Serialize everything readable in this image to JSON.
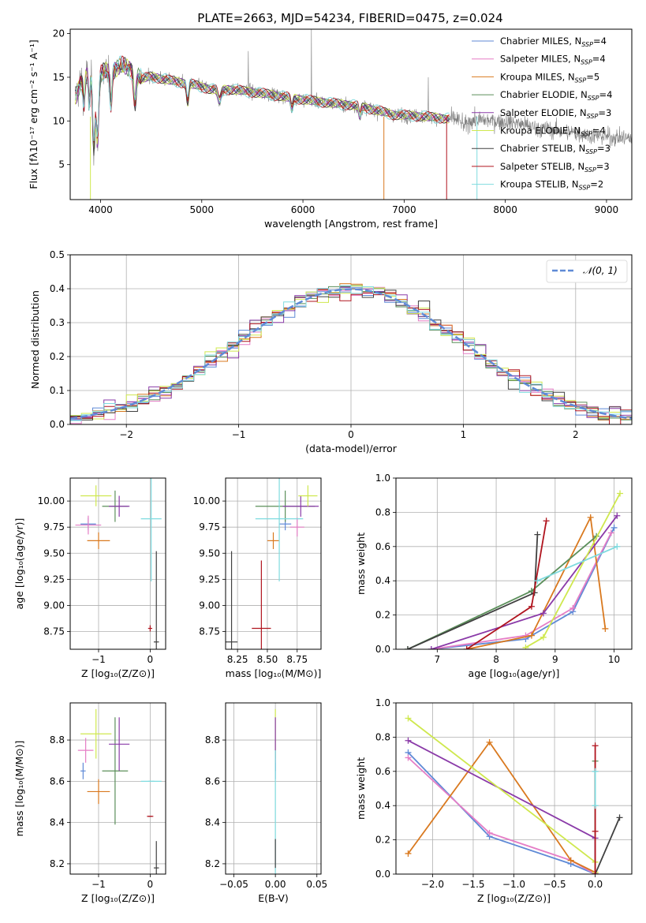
{
  "figure": {
    "title": "PLATE=2663, MJD=54234, FIBERID=0475, z=0.024"
  },
  "colors": {
    "Chabrier MILES": "#5f8ad6",
    "Salpeter MILES": "#e57ec6",
    "Kroupa MILES": "#d9791f",
    "Chabrier ELODIE": "#5b8f5a",
    "Salpeter ELODIE": "#8a3aa8",
    "Kroupa ELODIE": "#cfe84e",
    "Chabrier STELIB": "#404040",
    "Salpeter STELIB": "#b0141e",
    "Kroupa STELIB": "#7fdbdf",
    "data": "#7f7f7f",
    "normal": "#5f8ad6"
  },
  "chart_data": [
    {
      "id": "spectrum",
      "type": "line",
      "title": "PLATE=2663, MJD=54234, FIBERID=0475, z=0.024",
      "xlabel": "wavelength [Angstrom, rest frame]",
      "ylabel": "Flux [fλ10⁻¹⁷ erg cm⁻² s⁻¹ A⁻¹]",
      "xlim": [
        3700,
        9250
      ],
      "ylim": [
        1,
        20.5
      ],
      "xticks": [
        4000,
        5000,
        6000,
        7000,
        8000,
        9000
      ],
      "yticks": [
        5,
        10,
        15,
        20
      ],
      "grid": false,
      "legend_position": "upper right",
      "legend": [
        {
          "label": "Chabrier MILES, N",
          "sub": "SSP",
          "suffix": "=4"
        },
        {
          "label": "Salpeter MILES, N",
          "sub": "SSP",
          "suffix": "=4"
        },
        {
          "label": "Kroupa MILES, N",
          "sub": "SSP",
          "suffix": "=5"
        },
        {
          "label": "Chabrier ELODIE, N",
          "sub": "SSP",
          "suffix": "=4"
        },
        {
          "label": "Salpeter ELODIE, N",
          "sub": "SSP",
          "suffix": "=3"
        },
        {
          "label": "Kroupa ELODIE, N",
          "sub": "SSP",
          "suffix": "=4"
        },
        {
          "label": "Chabrier STELIB, N",
          "sub": "SSP",
          "suffix": "=3"
        },
        {
          "label": "Salpeter STELIB, N",
          "sub": "SSP",
          "suffix": "=3"
        },
        {
          "label": "Kroupa STELIB, N",
          "sub": "SSP",
          "suffix": "=2"
        }
      ],
      "continuum": {
        "x": [
          3750,
          3800,
          3900,
          4000,
          4100,
          4200,
          4300,
          4400,
          4500,
          4700,
          4900,
          5100,
          5300,
          5500,
          5700,
          5900,
          6100,
          6300,
          6500,
          6700,
          6900,
          7100,
          7300,
          7500,
          7700,
          7900,
          8100,
          8300,
          8500,
          8700,
          8900,
          9100,
          9250
        ],
        "y": [
          12.6,
          14.4,
          15.6,
          15.4,
          15.8,
          16.3,
          16.0,
          14.8,
          15.1,
          14.6,
          14.2,
          13.6,
          13.6,
          13.3,
          13.0,
          12.6,
          12.3,
          12.0,
          11.8,
          11.3,
          10.7,
          10.6,
          10.4,
          10.2,
          10.1,
          10.0,
          9.8,
          9.2,
          8.9,
          8.6,
          8.3,
          8.1,
          8.0
        ]
      }
    },
    {
      "id": "residuals",
      "type": "histogram",
      "xlabel": "(data-model)/error",
      "ylabel": "Normed distribution",
      "xlim": [
        -2.5,
        2.5
      ],
      "ylim": [
        0,
        0.5
      ],
      "xticks": [
        -2,
        -1,
        0,
        1,
        2
      ],
      "yticks": [
        0.0,
        0.1,
        0.2,
        0.3,
        0.4,
        0.5
      ],
      "grid": true,
      "legend_position": "upper right",
      "legend": [
        {
          "label": "𝒩(0, 1)"
        }
      ],
      "bin_width": 0.1
    },
    {
      "id": "age-vs-Z",
      "type": "scatter",
      "xlabel": "Z [log₁₀(Z/Z⊙)]",
      "ylabel": "age  [log₁₀(age/yr)]",
      "xlim": [
        -1.55,
        0.3
      ],
      "ylim": [
        8.58,
        10.22
      ],
      "xticks": [
        -1,
        0
      ],
      "yticks": [
        8.75,
        9.0,
        9.25,
        9.5,
        9.75,
        10.0
      ],
      "grid": true,
      "points": [
        {
          "series": "Chabrier MILES",
          "x": -1.2,
          "y": 9.78,
          "xerr": 0.15,
          "yerr": 0.06
        },
        {
          "series": "Salpeter MILES",
          "x": -1.2,
          "y": 9.77,
          "xerr": 0.25,
          "yerr": 0.09
        },
        {
          "series": "Kroupa MILES",
          "x": -1.0,
          "y": 9.62,
          "xerr": 0.22,
          "yerr": 0.08
        },
        {
          "series": "Chabrier ELODIE",
          "x": -0.68,
          "y": 9.95,
          "xerr": 0.25,
          "yerr": 0.15
        },
        {
          "series": "Salpeter ELODIE",
          "x": -0.6,
          "y": 9.95,
          "xerr": 0.2,
          "yerr": 0.1
        },
        {
          "series": "Kroupa ELODIE",
          "x": -1.05,
          "y": 10.05,
          "xerr": 0.3,
          "yerr": 0.1
        },
        {
          "series": "Chabrier STELIB",
          "x": 0.12,
          "y": 8.65,
          "xerr": 0.05,
          "yerr": 0.87
        },
        {
          "series": "Salpeter STELIB",
          "x": 0.0,
          "y": 8.78,
          "xerr": 0.04,
          "yerr": 0.03
        },
        {
          "series": "Kroupa STELIB",
          "x": 0.02,
          "y": 9.83,
          "xerr": 0.2,
          "yerr": 0.6
        }
      ]
    },
    {
      "id": "age-vs-mass",
      "type": "scatter",
      "xlabel": "mass [log₁₀(M/M⊙)]",
      "ylabel": "",
      "xlim": [
        8.15,
        8.95
      ],
      "ylim": [
        8.58,
        10.22
      ],
      "xticks": [
        8.25,
        8.5,
        8.75
      ],
      "yticks": [
        8.75,
        9.0,
        9.25,
        9.5,
        9.75,
        10.0
      ],
      "grid": true,
      "points": [
        {
          "series": "Chabrier MILES",
          "x": 8.65,
          "y": 9.78,
          "xerr": 0.05,
          "yerr": 0.06
        },
        {
          "series": "Salpeter MILES",
          "x": 8.75,
          "y": 9.75,
          "xerr": 0.06,
          "yerr": 0.09
        },
        {
          "series": "Kroupa MILES",
          "x": 8.55,
          "y": 9.62,
          "xerr": 0.05,
          "yerr": 0.08
        },
        {
          "series": "Chabrier ELODIE",
          "x": 8.65,
          "y": 9.95,
          "xerr": 0.25,
          "yerr": 0.15
        },
        {
          "series": "Salpeter ELODIE",
          "x": 8.78,
          "y": 9.95,
          "xerr": 0.15,
          "yerr": 0.1
        },
        {
          "series": "Kroupa ELODIE",
          "x": 8.84,
          "y": 10.05,
          "xerr": 0.08,
          "yerr": 0.1
        },
        {
          "series": "Chabrier STELIB",
          "x": 8.2,
          "y": 8.65,
          "xerr": 0.05,
          "yerr": 0.87
        },
        {
          "series": "Salpeter STELIB",
          "x": 8.45,
          "y": 8.78,
          "xerr": 0.08,
          "yerr": 0.65
        },
        {
          "series": "Kroupa STELIB",
          "x": 8.6,
          "y": 9.83,
          "xerr": 0.2,
          "yerr": 0.6
        }
      ]
    },
    {
      "id": "weight-vs-age",
      "type": "line",
      "xlabel": "age  [log₁₀(age/yr)]",
      "ylabel": "mass weight",
      "xlim": [
        6.3,
        10.3
      ],
      "ylim": [
        0,
        1
      ],
      "xticks": [
        7,
        8,
        9,
        10
      ],
      "yticks": [
        0.0,
        0.2,
        0.4,
        0.6,
        0.8,
        1.0
      ],
      "grid": true,
      "series": [
        {
          "name": "Chabrier MILES",
          "x": [
            6.9,
            8.5,
            9.3,
            10.0
          ],
          "y": [
            0.0,
            0.06,
            0.22,
            0.71
          ]
        },
        {
          "name": "Salpeter MILES",
          "x": [
            6.9,
            8.5,
            9.3,
            9.95
          ],
          "y": [
            0.0,
            0.08,
            0.24,
            0.68
          ]
        },
        {
          "name": "Kroupa MILES",
          "x": [
            7.5,
            8.6,
            9.6,
            9.85
          ],
          "y": [
            0.0,
            0.08,
            0.77,
            0.12
          ]
        },
        {
          "name": "Chabrier ELODIE",
          "x": [
            6.5,
            8.6,
            8.6,
            9.7
          ],
          "y": [
            0.0,
            0.34,
            0.34,
            0.66
          ]
        },
        {
          "name": "Salpeter ELODIE",
          "x": [
            6.9,
            8.8,
            10.05
          ],
          "y": [
            0.0,
            0.21,
            0.78
          ]
        },
        {
          "name": "Kroupa ELODIE",
          "x": [
            8.5,
            8.8,
            10.1
          ],
          "y": [
            0.01,
            0.07,
            0.91
          ]
        },
        {
          "name": "Chabrier STELIB",
          "x": [
            6.5,
            8.65,
            8.7
          ],
          "y": [
            0.0,
            0.33,
            0.67
          ]
        },
        {
          "name": "Salpeter STELIB",
          "x": [
            7.5,
            8.6,
            8.85
          ],
          "y": [
            0.0,
            0.25,
            0.75
          ]
        },
        {
          "name": "Kroupa STELIB",
          "x": [
            8.7,
            10.05
          ],
          "y": [
            0.4,
            0.6
          ]
        }
      ]
    },
    {
      "id": "mass-vs-Z",
      "type": "scatter",
      "xlabel": "Z [log₁₀(Z/Z⊙)]",
      "ylabel": "mass [log₁₀(M/M⊙)]",
      "xlim": [
        -1.55,
        0.3
      ],
      "ylim": [
        8.15,
        8.98
      ],
      "xticks": [
        -1,
        0
      ],
      "yticks": [
        8.2,
        8.4,
        8.6,
        8.8
      ],
      "grid": true,
      "points": [
        {
          "series": "Chabrier MILES",
          "x": -1.3,
          "y": 8.65,
          "xerr": 0.05,
          "yerr": 0.04
        },
        {
          "series": "Salpeter MILES",
          "x": -1.25,
          "y": 8.75,
          "xerr": 0.15,
          "yerr": 0.06
        },
        {
          "series": "Kroupa MILES",
          "x": -1.0,
          "y": 8.55,
          "xerr": 0.22,
          "yerr": 0.06
        },
        {
          "series": "Chabrier ELODIE",
          "x": -0.68,
          "y": 8.65,
          "xerr": 0.25,
          "yerr": 0.26
        },
        {
          "series": "Salpeter ELODIE",
          "x": -0.6,
          "y": 8.78,
          "xerr": 0.2,
          "yerr": 0.13
        },
        {
          "series": "Kroupa ELODIE",
          "x": -1.05,
          "y": 8.83,
          "xerr": 0.3,
          "yerr": 0.12
        },
        {
          "series": "Chabrier STELIB",
          "x": 0.12,
          "y": 8.18,
          "xerr": 0.05,
          "yerr": 0.13
        },
        {
          "series": "Salpeter STELIB",
          "x": 0.0,
          "y": 8.43,
          "xerr": 0.04,
          "yerr": 0.0
        },
        {
          "series": "Kroupa STELIB",
          "x": 0.02,
          "y": 8.6,
          "xerr": 0.2,
          "yerr": 0.0
        }
      ]
    },
    {
      "id": "mass-vs-ebv",
      "type": "scatter",
      "xlabel": "E(B-V)",
      "ylabel": "",
      "xlim": [
        -0.06,
        0.055
      ],
      "ylim": [
        8.15,
        8.98
      ],
      "xticks": [
        -0.05,
        0.0,
        0.05
      ],
      "yticks": [
        8.2,
        8.4,
        8.6,
        8.8
      ],
      "grid": true,
      "points": [
        {
          "series": "Kroupa ELODIE",
          "x": 0.0,
          "y": 8.83,
          "xerr": 0.0,
          "yerr": 0.12
        },
        {
          "series": "Salpeter ELODIE",
          "x": 0.0,
          "y": 8.78,
          "xerr": 0.0,
          "yerr": 0.13
        },
        {
          "series": "Chabrier MILES",
          "x": 0.0,
          "y": 8.65,
          "xerr": 0.0,
          "yerr": 0.04
        },
        {
          "series": "Kroupa STELIB",
          "x": 0.0,
          "y": 8.45,
          "xerr": 0.0,
          "yerr": 0.3
        },
        {
          "series": "Chabrier STELIB",
          "x": 0.0,
          "y": 8.25,
          "xerr": 0.0,
          "yerr": 0.07
        }
      ]
    },
    {
      "id": "weight-vs-Z",
      "type": "line",
      "xlabel": "Z [log₁₀(Z/Z⊙)]",
      "ylabel": "mass weight",
      "xlim": [
        -2.45,
        0.45
      ],
      "ylim": [
        0,
        1
      ],
      "xticks": [
        -2.0,
        -1.5,
        -1.0,
        -0.5,
        0.0
      ],
      "yticks": [
        0.0,
        0.2,
        0.4,
        0.6,
        0.8,
        1.0
      ],
      "grid": true,
      "series": [
        {
          "name": "Chabrier MILES",
          "x": [
            -2.3,
            -1.3,
            -0.3,
            0.0
          ],
          "y": [
            0.71,
            0.22,
            0.06,
            0.0
          ]
        },
        {
          "name": "Salpeter MILES",
          "x": [
            -2.3,
            -1.3,
            -0.3,
            0.0
          ],
          "y": [
            0.68,
            0.24,
            0.08,
            0.0
          ]
        },
        {
          "name": "Kroupa MILES",
          "x": [
            -2.3,
            -1.3,
            -0.3,
            0.0,
            0.0
          ],
          "y": [
            0.12,
            0.77,
            0.08,
            0.01,
            0.0
          ]
        },
        {
          "name": "Chabrier ELODIE",
          "x": [
            0.0,
            0.0
          ],
          "y": [
            0.0,
            0.66
          ]
        },
        {
          "name": "Salpeter ELODIE",
          "x": [
            -2.3,
            0.0,
            0.0
          ],
          "y": [
            0.78,
            0.21,
            0.0
          ]
        },
        {
          "name": "Kroupa ELODIE",
          "x": [
            -2.3,
            0.0,
            0.0
          ],
          "y": [
            0.91,
            0.07,
            0.01
          ]
        },
        {
          "name": "Chabrier STELIB",
          "x": [
            0.0,
            0.3
          ],
          "y": [
            0.0,
            0.33
          ]
        },
        {
          "name": "Salpeter STELIB",
          "x": [
            0.0,
            0.0,
            0.0
          ],
          "y": [
            0.0,
            0.25,
            0.75
          ]
        },
        {
          "name": "Kroupa STELIB",
          "x": [
            0.0,
            0.0
          ],
          "y": [
            0.4,
            0.6
          ]
        }
      ]
    }
  ]
}
